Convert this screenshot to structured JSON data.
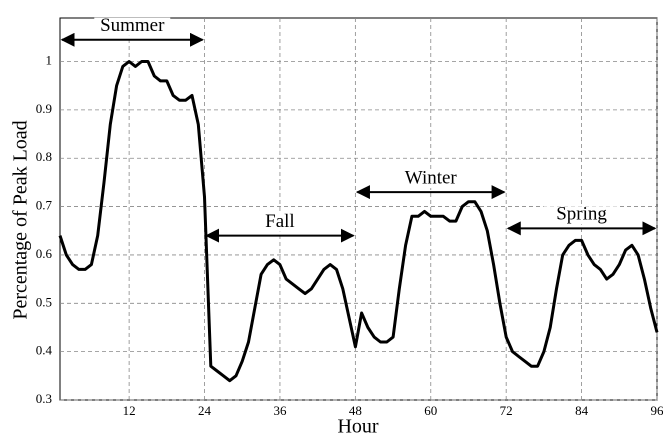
{
  "chart_data": {
    "type": "line",
    "xlabel": "Hour",
    "ylabel": "Percentage of Peak Load",
    "xlim": [
      1,
      96
    ],
    "ylim": [
      0.3,
      1.09
    ],
    "xticks": [
      12,
      24,
      36,
      48,
      60,
      72,
      84,
      96
    ],
    "yticks": [
      0.3,
      0.4,
      0.5,
      0.6,
      0.7,
      0.8,
      0.9,
      1
    ],
    "grid": true,
    "x": [
      1,
      2,
      3,
      4,
      5,
      6,
      7,
      8,
      9,
      10,
      11,
      12,
      13,
      14,
      15,
      16,
      17,
      18,
      19,
      20,
      21,
      22,
      23,
      24,
      25,
      26,
      27,
      28,
      29,
      30,
      31,
      32,
      33,
      34,
      35,
      36,
      37,
      38,
      39,
      40,
      41,
      42,
      43,
      44,
      45,
      46,
      47,
      48,
      49,
      50,
      51,
      52,
      53,
      54,
      55,
      56,
      57,
      58,
      59,
      60,
      61,
      62,
      63,
      64,
      65,
      66,
      67,
      68,
      69,
      70,
      71,
      72,
      73,
      74,
      75,
      76,
      77,
      78,
      79,
      80,
      81,
      82,
      83,
      84,
      85,
      86,
      87,
      88,
      89,
      90,
      91,
      92,
      93,
      94,
      95,
      96
    ],
    "series": [
      {
        "color": "#000000",
        "values": [
          0.64,
          0.6,
          0.58,
          0.57,
          0.57,
          0.58,
          0.64,
          0.75,
          0.87,
          0.95,
          0.99,
          1.0,
          0.99,
          1.0,
          1.0,
          0.97,
          0.96,
          0.96,
          0.93,
          0.92,
          0.92,
          0.93,
          0.87,
          0.72,
          0.37,
          0.36,
          0.35,
          0.34,
          0.35,
          0.38,
          0.42,
          0.49,
          0.56,
          0.58,
          0.59,
          0.58,
          0.55,
          0.54,
          0.53,
          0.52,
          0.53,
          0.55,
          0.57,
          0.58,
          0.57,
          0.53,
          0.47,
          0.41,
          0.48,
          0.45,
          0.43,
          0.42,
          0.42,
          0.43,
          0.53,
          0.62,
          0.68,
          0.68,
          0.69,
          0.68,
          0.68,
          0.68,
          0.67,
          0.67,
          0.7,
          0.71,
          0.71,
          0.69,
          0.65,
          0.58,
          0.5,
          0.43,
          0.4,
          0.39,
          0.38,
          0.37,
          0.37,
          0.4,
          0.45,
          0.53,
          0.6,
          0.62,
          0.63,
          0.63,
          0.6,
          0.58,
          0.57,
          0.55,
          0.56,
          0.58,
          0.61,
          0.62,
          0.6,
          0.55,
          0.49,
          0.44
        ]
      }
    ],
    "annotations": [
      {
        "text": "Summer",
        "x": [
          1,
          24
        ],
        "y": 1.045
      },
      {
        "text": "Fall",
        "x": [
          24,
          48
        ],
        "y": 0.64
      },
      {
        "text": "Winter",
        "x": [
          48,
          72
        ],
        "y": 0.73
      },
      {
        "text": "Spring",
        "x": [
          72,
          96
        ],
        "y": 0.655
      }
    ]
  }
}
